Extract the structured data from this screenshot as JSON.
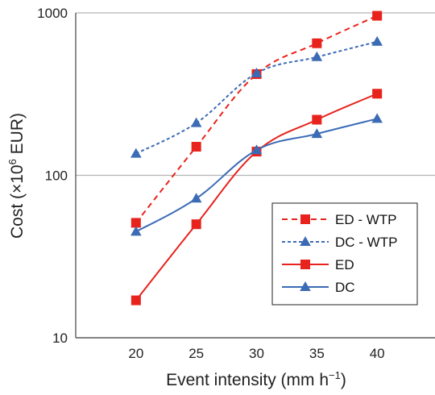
{
  "chart_data": {
    "type": "line",
    "x": [
      20,
      25,
      30,
      35,
      40
    ],
    "xlim": [
      15,
      45
    ],
    "xticks": [
      "20",
      "25",
      "30",
      "35",
      "40"
    ],
    "ylim": [
      10,
      1000
    ],
    "yscale": "log",
    "yticks": [
      "10",
      "100",
      "1000"
    ],
    "xlabel": {
      "main": "Event intensity (mm h",
      "sup": "−1",
      "end": ")"
    },
    "ylabel": {
      "main": "Cost (×10",
      "sup": "6",
      "end": " EUR)"
    },
    "grid": "horizontal",
    "legend_position": "bottom-right",
    "series": [
      {
        "name": "ED - WTP",
        "color": "#e8221c",
        "dash": "dashed",
        "marker": "square",
        "values": [
          51,
          150,
          420,
          650,
          960
        ]
      },
      {
        "name": "DC - WTP",
        "color": "#3b6bb5",
        "dash": "dotted",
        "marker": "triangle",
        "values": [
          136,
          210,
          425,
          535,
          665
        ]
      },
      {
        "name": "ED",
        "color": "#e8221c",
        "dash": "solid",
        "marker": "square",
        "values": [
          17,
          50,
          140,
          220,
          318
        ]
      },
      {
        "name": "DC",
        "color": "#3b6bb5",
        "dash": "solid",
        "marker": "triangle",
        "values": [
          45,
          72,
          143,
          180,
          223
        ]
      }
    ]
  }
}
